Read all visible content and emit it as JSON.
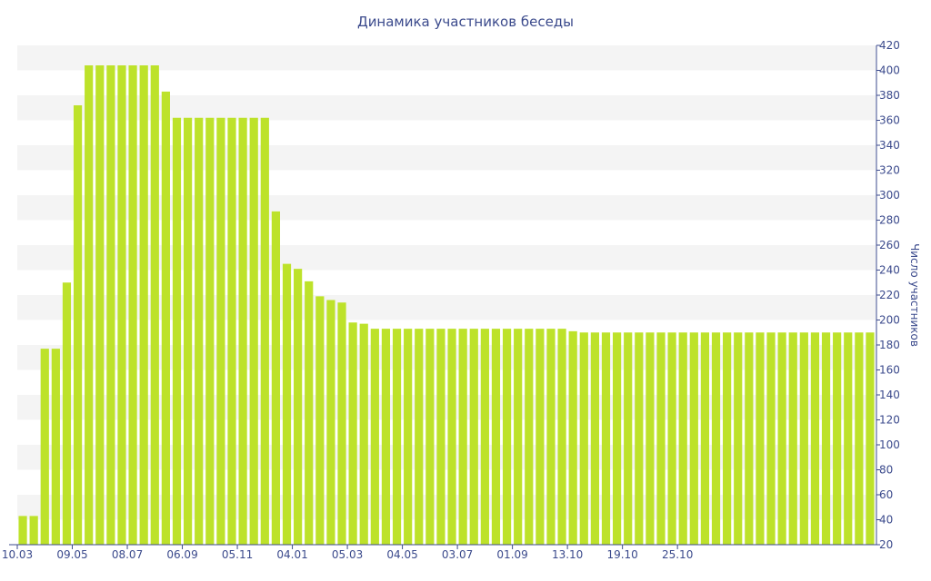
{
  "chart_data": {
    "type": "bar",
    "title": "Динамика участников беседы",
    "xlabel": "",
    "ylabel": "Число участников",
    "ylim": [
      20,
      420
    ],
    "yticks": [
      20,
      40,
      60,
      80,
      100,
      120,
      140,
      160,
      180,
      200,
      220,
      240,
      260,
      280,
      300,
      320,
      340,
      360,
      380,
      400,
      420
    ],
    "y_axis_side": "right",
    "grid": "alternating horizontal bands",
    "legend": "none",
    "bar_color": "#bde22a",
    "band_color": "#f4f4f4",
    "text_color": "#3b4a8c",
    "x_tick_labels": [
      {
        "label": "10.03",
        "index": 0
      },
      {
        "label": "09.05",
        "index": 5
      },
      {
        "label": "08.07",
        "index": 10
      },
      {
        "label": "06.09",
        "index": 15
      },
      {
        "label": "05.11",
        "index": 20
      },
      {
        "label": "04.01",
        "index": 25
      },
      {
        "label": "05.03",
        "index": 30
      },
      {
        "label": "04.05",
        "index": 35
      },
      {
        "label": "03.07",
        "index": 40
      },
      {
        "label": "01.09",
        "index": 45
      },
      {
        "label": "13.10",
        "index": 50
      },
      {
        "label": "19.10",
        "index": 55
      },
      {
        "label": "25.10",
        "index": 60
      }
    ],
    "values": [
      43,
      43,
      177,
      177,
      230,
      372,
      404,
      404,
      404,
      404,
      404,
      404,
      404,
      383,
      362,
      362,
      362,
      362,
      362,
      362,
      362,
      362,
      362,
      287,
      245,
      241,
      231,
      219,
      216,
      214,
      198,
      197,
      193,
      193,
      193,
      193,
      193,
      193,
      193,
      193,
      193,
      193,
      193,
      193,
      193,
      193,
      193,
      193,
      193,
      193,
      191,
      190,
      190,
      190,
      190,
      190,
      190,
      190,
      190,
      190,
      190,
      190,
      190,
      190,
      190,
      190,
      190,
      190,
      190,
      190,
      190,
      190,
      190,
      190,
      190,
      190,
      190,
      190
    ]
  }
}
